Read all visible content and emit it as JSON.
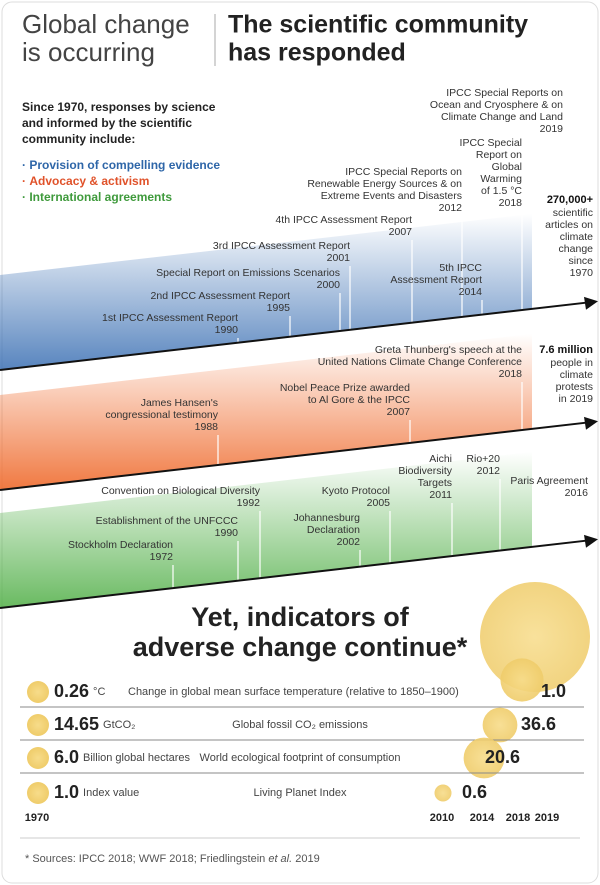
{
  "header": {
    "left_title": [
      "Global change",
      "is occurring"
    ],
    "right_title": [
      "The scientific community",
      "has responded"
    ]
  },
  "intro": [
    "Since 1970, responses by science",
    "and informed by the scientific",
    "community include:"
  ],
  "legend": [
    {
      "bullet": "·",
      "label": "Provision of compelling evidence",
      "color": "#2e66a8"
    },
    {
      "bullet": "·",
      "label": "Advocacy & activism",
      "color": "#e0522a"
    },
    {
      "bullet": "·",
      "label": "International agreements",
      "color": "#3f9a3c"
    }
  ],
  "bands": [
    {
      "color": "#3a6fb3",
      "events": [
        {
          "lines": [
            "1st IPCC Assessment Report"
          ],
          "year": "1990"
        },
        {
          "lines": [
            "2nd IPCC Assessment Report"
          ],
          "year": "1995"
        },
        {
          "lines": [
            "Special Report on Emissions Scenarios"
          ],
          "year": "2000"
        },
        {
          "lines": [
            "3rd IPCC Assessment Report"
          ],
          "year": "2001"
        },
        {
          "lines": [
            "4th IPCC Assessment Report"
          ],
          "year": "2007"
        },
        {
          "lines": [
            "IPCC Special Reports on",
            "Renewable Energy Sources & on",
            "Extreme Events and Disasters"
          ],
          "year": "2012"
        },
        {
          "lines": [
            "5th IPCC",
            "Assessment Report"
          ],
          "year": "2014"
        },
        {
          "lines": [
            "IPCC Special",
            "Report on",
            "Global",
            "Warming",
            "of 1.5 °C"
          ],
          "year": "2018"
        },
        {
          "lines": [
            "IPCC Special Reports on",
            "Ocean and Cryosphere & on",
            "Climate Change and Land"
          ],
          "year": "2019"
        }
      ],
      "total": {
        "headline": "270,000+",
        "lines": [
          "scientific",
          "articles on",
          "climate",
          "change",
          "since",
          "1970"
        ]
      }
    },
    {
      "color": "#ef6a2c",
      "events": [
        {
          "lines": [
            "James Hansen's",
            "congressional testimony"
          ],
          "year": "1988"
        },
        {
          "lines": [
            "Nobel Peace Prize awarded",
            "to Al Gore & the IPCC"
          ],
          "year": "2007"
        },
        {
          "lines": [
            "Greta Thunberg's speech at the",
            "United Nations Climate Change Conference"
          ],
          "year": "2018"
        }
      ],
      "total": {
        "headline": "7.6 million",
        "lines": [
          "people in",
          "climate",
          "protests",
          "in 2019"
        ]
      }
    },
    {
      "color": "#4fae45",
      "events": [
        {
          "lines": [
            "Stockholm Declaration"
          ],
          "year": "1972"
        },
        {
          "lines": [
            "Establishment of the UNFCCC"
          ],
          "year": "1990"
        },
        {
          "lines": [
            "Convention on Biological Diversity"
          ],
          "year": "1992"
        },
        {
          "lines": [
            "Johannesburg",
            "Declaration"
          ],
          "year": "2002"
        },
        {
          "lines": [
            "Kyoto Protocol"
          ],
          "year": "2005"
        },
        {
          "lines": [
            "Aichi",
            "Biodiversity",
            "Targets"
          ],
          "year": "2011"
        },
        {
          "lines": [
            "Rio+20"
          ],
          "year": "2012"
        },
        {
          "lines": [
            "Paris Agreement"
          ],
          "year": "2016"
        }
      ]
    }
  ],
  "indicators": {
    "title": [
      "Yet, indicators of",
      "adverse change continue*"
    ],
    "rows": [
      {
        "start": 0.26,
        "unit": "°C",
        "label": "Change in global mean surface temperature (relative to 1850–1900)",
        "end": 1.0,
        "end_label": "1.0"
      },
      {
        "start": 14.65,
        "unit": "GtCO₂",
        "label": "Global fossil CO₂ emissions",
        "end": 36.6
      },
      {
        "start": 6.0,
        "start_label": "6.0",
        "unit": "Billion global hectares",
        "label": "World ecological footprint of consumption",
        "end": 20.6
      },
      {
        "start": 1.0,
        "start_label": "1.0",
        "unit": "Index value",
        "label": "Living Planet Index",
        "end": 0.6
      }
    ],
    "years": [
      1970,
      2010,
      2014,
      2018,
      2019
    ]
  },
  "footnote": [
    "* Sources: IPCC  2018; WWF 2018; Friedlingstein ",
    "et al.",
    " 2019"
  ]
}
